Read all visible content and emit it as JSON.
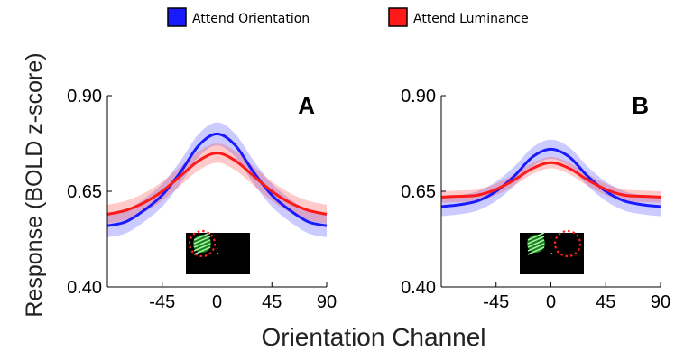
{
  "legend": [
    {
      "name": "Attend Orientation",
      "color": "#1a1aff"
    },
    {
      "name": "Attend Luminance",
      "color": "#ff1a1a"
    }
  ],
  "ylabel": "Response (BOLD z-score)",
  "xlabel": "Orientation Channel",
  "chart_data": [
    {
      "type": "line",
      "panel_label": "A",
      "xlim": [
        -90,
        90
      ],
      "ylim": [
        0.4,
        0.9
      ],
      "xticks": [
        "-45",
        "0",
        "45",
        "90"
      ],
      "yticks": [
        "0.40",
        "0.65",
        "0.90"
      ],
      "x": [
        -90,
        -75,
        -60,
        -45,
        -30,
        -15,
        0,
        15,
        30,
        45,
        60,
        75,
        90
      ],
      "series": [
        {
          "name": "Attend Orientation",
          "color": "#1a1aff",
          "values": [
            0.56,
            0.57,
            0.6,
            0.64,
            0.7,
            0.77,
            0.8,
            0.77,
            0.7,
            0.64,
            0.6,
            0.57,
            0.56
          ],
          "ci_half_width": 0.03
        },
        {
          "name": "Attend Luminance",
          "color": "#ff1a1a",
          "values": [
            0.59,
            0.6,
            0.62,
            0.65,
            0.69,
            0.73,
            0.75,
            0.73,
            0.69,
            0.65,
            0.62,
            0.6,
            0.59
          ],
          "ci_half_width": 0.025
        }
      ],
      "inset": {
        "stimulus_side": "left",
        "attended_ring": "left"
      }
    },
    {
      "type": "line",
      "panel_label": "B",
      "xlim": [
        -90,
        90
      ],
      "ylim": [
        0.4,
        0.9
      ],
      "xticks": [
        "-45",
        "0",
        "45",
        "90"
      ],
      "yticks": [
        "0.40",
        "0.65",
        "0.90"
      ],
      "x": [
        -90,
        -75,
        -60,
        -45,
        -30,
        -15,
        0,
        15,
        30,
        45,
        60,
        75,
        90
      ],
      "series": [
        {
          "name": "Attend Orientation",
          "color": "#1a1aff",
          "values": [
            0.61,
            0.615,
            0.625,
            0.65,
            0.69,
            0.74,
            0.76,
            0.74,
            0.69,
            0.65,
            0.625,
            0.615,
            0.61
          ],
          "ci_half_width": 0.025
        },
        {
          "name": "Attend Luminance",
          "color": "#ff1a1a",
          "values": [
            0.635,
            0.637,
            0.64,
            0.655,
            0.68,
            0.71,
            0.725,
            0.71,
            0.68,
            0.655,
            0.64,
            0.637,
            0.635
          ],
          "ci_half_width": 0.015
        }
      ],
      "inset": {
        "stimulus_side": "left",
        "attended_ring": "right"
      }
    }
  ]
}
